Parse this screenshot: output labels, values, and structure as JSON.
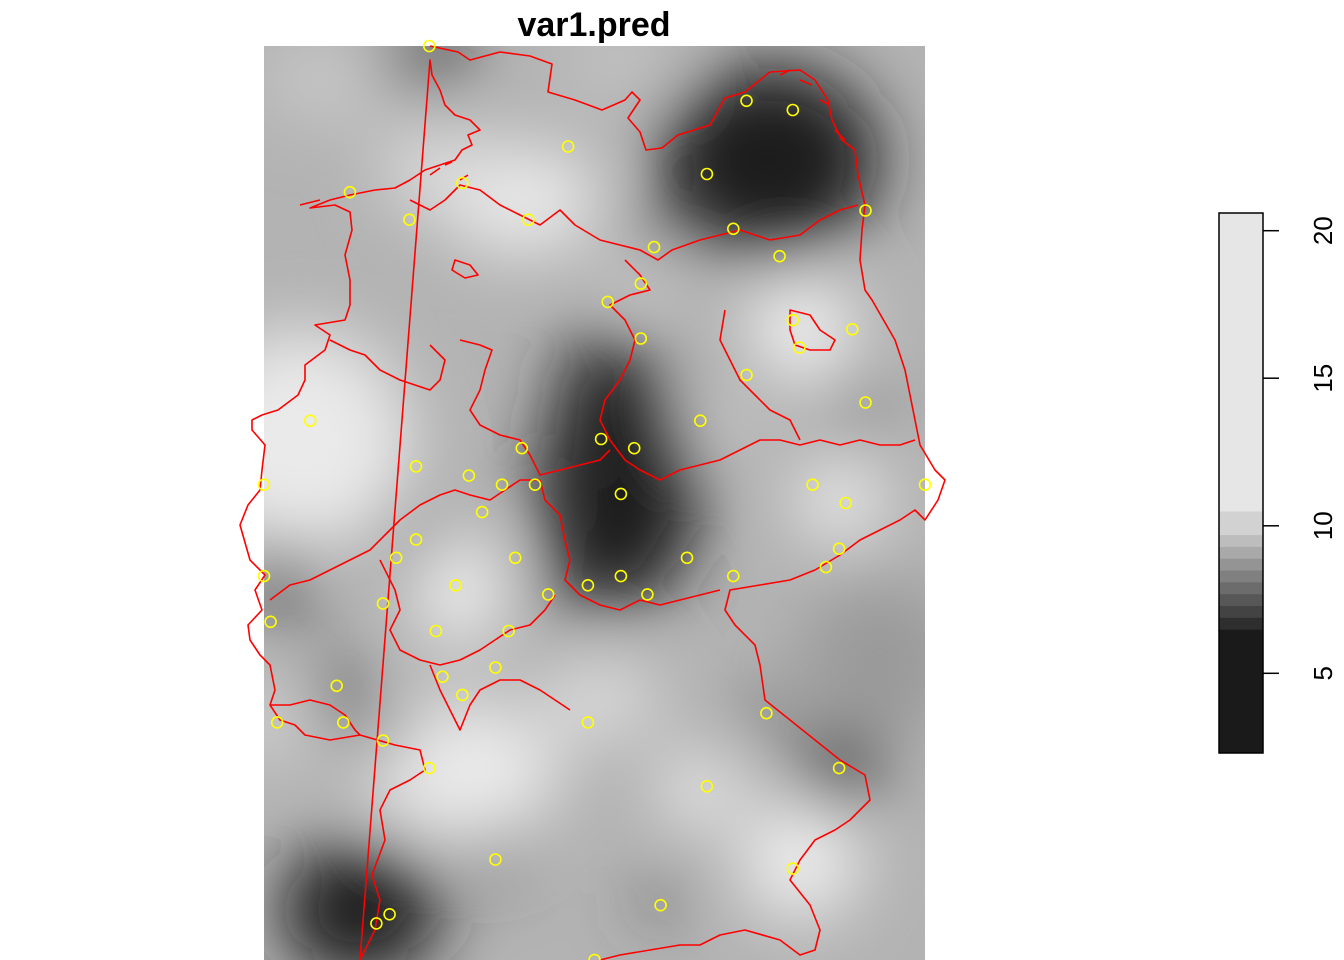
{
  "title": "var1.pred",
  "colors": {
    "background": "#ffffff",
    "boundary": "#ff0000",
    "station": "#ffff00",
    "ramp_low": "#1a1a1a",
    "ramp_high": "#e6e6e6"
  },
  "legend": {
    "placement": "right",
    "orientation": "vertical",
    "range": [
      2.3,
      20.6
    ],
    "ticks": [
      {
        "value": 5,
        "label": "5"
      },
      {
        "value": 10,
        "label": "10"
      },
      {
        "value": 15,
        "label": "15"
      },
      {
        "value": 20,
        "label": "20"
      }
    ],
    "breaks": [
      2.3,
      6.5,
      6.9,
      7.3,
      7.7,
      8.1,
      8.5,
      8.9,
      9.3,
      9.7,
      10.5,
      20.6
    ]
  },
  "chart_data": {
    "type": "heatmap",
    "title": "var1.pred",
    "value_range": [
      2.3,
      20.6
    ],
    "stations": [
      [
        0.25,
        0.0
      ],
      [
        0.73,
        0.06
      ],
      [
        0.8,
        0.07
      ],
      [
        0.46,
        0.11
      ],
      [
        0.67,
        0.14
      ],
      [
        0.13,
        0.16
      ],
      [
        0.3,
        0.15
      ],
      [
        0.22,
        0.19
      ],
      [
        0.4,
        0.19
      ],
      [
        0.91,
        0.18
      ],
      [
        0.71,
        0.2
      ],
      [
        0.59,
        0.22
      ],
      [
        0.78,
        0.23
      ],
      [
        0.57,
        0.26
      ],
      [
        0.52,
        0.28
      ],
      [
        0.8,
        0.3
      ],
      [
        0.89,
        0.31
      ],
      [
        0.57,
        0.32
      ],
      [
        0.81,
        0.33
      ],
      [
        0.73,
        0.36
      ],
      [
        0.91,
        0.39
      ],
      [
        0.07,
        0.41
      ],
      [
        0.66,
        0.41
      ],
      [
        0.51,
        0.43
      ],
      [
        0.56,
        0.44
      ],
      [
        0.39,
        0.44
      ],
      [
        0.23,
        0.46
      ],
      [
        0.31,
        0.47
      ],
      [
        0.36,
        0.48
      ],
      [
        0.41,
        0.48
      ],
      [
        0.83,
        0.48
      ],
      [
        0.0,
        0.48
      ],
      [
        1.0,
        0.48
      ],
      [
        0.54,
        0.49
      ],
      [
        0.88,
        0.5
      ],
      [
        0.33,
        0.51
      ],
      [
        0.23,
        0.54
      ],
      [
        0.2,
        0.56
      ],
      [
        0.38,
        0.56
      ],
      [
        0.64,
        0.56
      ],
      [
        0.87,
        0.55
      ],
      [
        0.85,
        0.57
      ],
      [
        0.0,
        0.58
      ],
      [
        0.54,
        0.58
      ],
      [
        0.71,
        0.58
      ],
      [
        0.29,
        0.59
      ],
      [
        0.49,
        0.59
      ],
      [
        0.43,
        0.6
      ],
      [
        0.58,
        0.6
      ],
      [
        0.18,
        0.61
      ],
      [
        0.26,
        0.64
      ],
      [
        0.37,
        0.64
      ],
      [
        0.01,
        0.63
      ],
      [
        0.27,
        0.69
      ],
      [
        0.35,
        0.68
      ],
      [
        0.11,
        0.7
      ],
      [
        0.3,
        0.71
      ],
      [
        0.02,
        0.74
      ],
      [
        0.12,
        0.74
      ],
      [
        0.49,
        0.74
      ],
      [
        0.76,
        0.73
      ],
      [
        0.18,
        0.76
      ],
      [
        0.87,
        0.79
      ],
      [
        0.25,
        0.79
      ],
      [
        0.67,
        0.81
      ],
      [
        0.35,
        0.89
      ],
      [
        0.8,
        0.9
      ],
      [
        0.6,
        0.94
      ],
      [
        0.19,
        0.95
      ],
      [
        0.17,
        0.96
      ],
      [
        0.5,
        1.0
      ]
    ]
  }
}
